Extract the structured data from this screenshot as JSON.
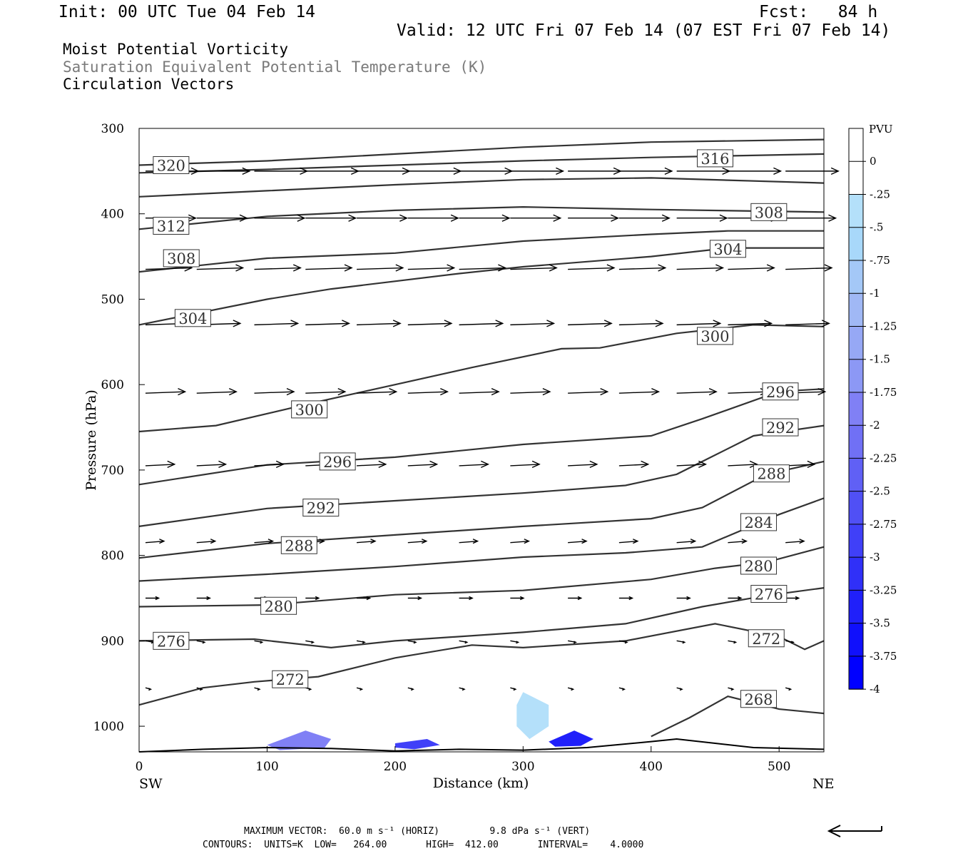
{
  "header": {
    "init": "Init: 00 UTC Tue 04 Feb 14",
    "fcst": "Fcst:   84 h",
    "valid": "Valid: 12 UTC Fri 07 Feb 14 (07 EST Fri 07 Feb 14)"
  },
  "titles": {
    "line1": "Moist Potential Vorticity",
    "line2": "Saturation Equivalent Potential Temperature (K)",
    "line3": "Circulation Vectors"
  },
  "footer": {
    "line1": "MAXIMUM VECTOR:  60.0 m s⁻¹ (HORIZ)         9.8 dPa s⁻¹ (VERT)",
    "line2": "CONTOURS:  UNITS=K  LOW=   264.00       HIGH=  412.00       INTERVAL=    4.0000"
  },
  "colors": {
    "contour": "#333333",
    "shade_light": "#b4e0fa",
    "shade_mid": "#a0b8f5",
    "shade_dark": "#0000ff"
  },
  "chart_data": {
    "type": "cross-section",
    "xlabel": "Distance (km)",
    "ylabel": "Pressure (hPa)",
    "xlim": [
      0,
      535
    ],
    "ylim": [
      1030,
      300
    ],
    "x_ticks": [
      0,
      100,
      200,
      300,
      400,
      500
    ],
    "x_tick_labels": [
      "0",
      "100",
      "200",
      "300",
      "400",
      "500"
    ],
    "y_ticks": [
      300,
      400,
      500,
      600,
      700,
      800,
      900,
      1000
    ],
    "y_tick_labels": [
      "300",
      "400",
      "500",
      "600",
      "700",
      "800",
      "900",
      "1000"
    ],
    "endpoints": {
      "left": "SW",
      "right": "NE"
    },
    "colorbar": {
      "unit": "PVU",
      "labels": [
        "0",
        "-.25",
        "-.5",
        "-.75",
        "-1",
        "-1.25",
        "-1.5",
        "-1.75",
        "-2",
        "-2.25",
        "-2.5",
        "-2.75",
        "-3",
        "-3.25",
        "-3.5",
        "-3.75",
        "-4"
      ],
      "colors": [
        "#ffffff",
        "#ffffff",
        "#b4e0fa",
        "#a8d8fa",
        "#a4c8f7",
        "#a0b8f5",
        "#96a8f5",
        "#8c98f5",
        "#8080f5",
        "#7070f5",
        "#6060f5",
        "#5050f5",
        "#4040f8",
        "#3030f8",
        "#2020fa",
        "#1010fc",
        "#0000ff"
      ]
    },
    "theta_es_contours": [
      {
        "value": "320",
        "label_x": 25,
        "label_p": 343,
        "points": [
          [
            0,
            343
          ],
          [
            100,
            338
          ],
          [
            200,
            330
          ],
          [
            300,
            322
          ],
          [
            400,
            316
          ],
          [
            535,
            313
          ]
        ]
      },
      {
        "value": "316",
        "label_x": 450,
        "label_p": 335,
        "points": [
          [
            0,
            352
          ],
          [
            100,
            348
          ],
          [
            200,
            343
          ],
          [
            300,
            338
          ],
          [
            400,
            334
          ],
          [
            535,
            330
          ]
        ]
      },
      {
        "value": "312",
        "label_x": 25,
        "label_p": 414,
        "points": [
          [
            0,
            380
          ],
          [
            100,
            373
          ],
          [
            200,
            366
          ],
          [
            300,
            360
          ],
          [
            400,
            358
          ],
          [
            535,
            364
          ]
        ]
      },
      {
        "value": "308",
        "label_x": 33,
        "label_p": 452,
        "points": [
          [
            0,
            418
          ],
          [
            100,
            403
          ],
          [
            200,
            396
          ],
          [
            300,
            392
          ],
          [
            400,
            395
          ],
          [
            535,
            398
          ]
        ]
      },
      {
        "value": "308",
        "label_x": 492,
        "label_p": 398,
        "points": []
      },
      {
        "value": "304",
        "label_x": 42,
        "label_p": 522,
        "points": [
          [
            0,
            468
          ],
          [
            100,
            452
          ],
          [
            200,
            446
          ],
          [
            300,
            432
          ],
          [
            400,
            424
          ],
          [
            460,
            420
          ],
          [
            535,
            420
          ]
        ]
      },
      {
        "value": "304",
        "label_x": 460,
        "label_p": 441,
        "points": [
          [
            0,
            530
          ],
          [
            100,
            500
          ],
          [
            150,
            488
          ],
          [
            250,
            470
          ],
          [
            300,
            462
          ],
          [
            400,
            450
          ],
          [
            460,
            440
          ],
          [
            535,
            440
          ]
        ]
      },
      {
        "value": "300",
        "label_x": 133,
        "label_p": 629,
        "points": [
          [
            0,
            655
          ],
          [
            60,
            648
          ],
          [
            140,
            620
          ],
          [
            200,
            600
          ],
          [
            260,
            580
          ],
          [
            330,
            558
          ],
          [
            360,
            557
          ],
          [
            420,
            540
          ],
          [
            480,
            530
          ],
          [
            535,
            532
          ]
        ]
      },
      {
        "value": "300",
        "label_x": 450,
        "label_p": 543,
        "points": []
      },
      {
        "value": "296",
        "label_x": 155,
        "label_p": 690,
        "points": [
          [
            0,
            717
          ],
          [
            100,
            694
          ],
          [
            200,
            685
          ],
          [
            300,
            670
          ],
          [
            400,
            660
          ],
          [
            440,
            640
          ],
          [
            500,
            608
          ],
          [
            535,
            605
          ]
        ]
      },
      {
        "value": "296",
        "label_x": 501,
        "label_p": 608,
        "points": []
      },
      {
        "value": "292",
        "label_x": 142,
        "label_p": 744,
        "points": [
          [
            0,
            766
          ],
          [
            100,
            745
          ],
          [
            200,
            736
          ],
          [
            300,
            727
          ],
          [
            380,
            718
          ],
          [
            420,
            705
          ],
          [
            480,
            660
          ],
          [
            535,
            648
          ]
        ]
      },
      {
        "value": "292",
        "label_x": 501,
        "label_p": 650,
        "points": []
      },
      {
        "value": "288",
        "label_x": 125,
        "label_p": 788,
        "points": [
          [
            0,
            803
          ],
          [
            100,
            786
          ],
          [
            200,
            776
          ],
          [
            300,
            766
          ],
          [
            400,
            757
          ],
          [
            440,
            744
          ],
          [
            490,
            705
          ],
          [
            535,
            690
          ]
        ]
      },
      {
        "value": "288",
        "label_x": 494,
        "label_p": 704,
        "points": []
      },
      {
        "value": "284",
        "label_x": 484,
        "label_p": 761,
        "points": [
          [
            0,
            830
          ],
          [
            100,
            822
          ],
          [
            200,
            813
          ],
          [
            300,
            802
          ],
          [
            380,
            797
          ],
          [
            440,
            790
          ],
          [
            500,
            752
          ],
          [
            535,
            733
          ]
        ]
      },
      {
        "value": "280",
        "label_x": 109,
        "label_p": 859,
        "points": [
          [
            0,
            860
          ],
          [
            100,
            858
          ],
          [
            200,
            846
          ],
          [
            300,
            841
          ],
          [
            400,
            828
          ],
          [
            450,
            815
          ],
          [
            490,
            808
          ],
          [
            535,
            790
          ]
        ]
      },
      {
        "value": "280",
        "label_x": 484,
        "label_p": 812,
        "points": []
      },
      {
        "value": "276",
        "label_x": 25,
        "label_p": 900,
        "points": [
          [
            0,
            900
          ],
          [
            90,
            898
          ],
          [
            150,
            908
          ],
          [
            200,
            900
          ],
          [
            300,
            890
          ],
          [
            380,
            880
          ],
          [
            440,
            860
          ],
          [
            490,
            847
          ],
          [
            535,
            838
          ]
        ]
      },
      {
        "value": "276",
        "label_x": 492,
        "label_p": 845,
        "points": []
      },
      {
        "value": "272",
        "label_x": 118,
        "label_p": 945,
        "points": [
          [
            0,
            975
          ],
          [
            50,
            955
          ],
          [
            90,
            948
          ],
          [
            140,
            942
          ],
          [
            200,
            920
          ],
          [
            260,
            905
          ],
          [
            300,
            908
          ],
          [
            380,
            900
          ],
          [
            450,
            880
          ],
          [
            500,
            895
          ],
          [
            520,
            910
          ],
          [
            535,
            900
          ]
        ]
      },
      {
        "value": "272",
        "label_x": 490,
        "label_p": 897,
        "points": []
      },
      {
        "value": "268",
        "label_x": 484,
        "label_p": 968,
        "points": [
          [
            400,
            1012
          ],
          [
            430,
            990
          ],
          [
            460,
            965
          ],
          [
            500,
            980
          ],
          [
            535,
            985
          ]
        ]
      }
    ],
    "pv_shading": [
      {
        "level": "-0.25",
        "poly": [
          [
            0,
            935
          ],
          [
            20,
            940
          ],
          [
            60,
            960
          ],
          [
            100,
            965
          ],
          [
            130,
            955
          ],
          [
            160,
            960
          ],
          [
            180,
            965
          ],
          [
            150,
            1000
          ],
          [
            120,
            1025
          ],
          [
            90,
            1000
          ],
          [
            60,
            985
          ],
          [
            30,
            995
          ],
          [
            10,
            985
          ],
          [
            0,
            975
          ]
        ]
      },
      {
        "level": "-0.25",
        "poly": [
          [
            190,
            1010
          ],
          [
            210,
            1005
          ],
          [
            230,
            1015
          ],
          [
            220,
            1025
          ],
          [
            190,
            1025
          ],
          [
            180,
            1018
          ]
        ]
      },
      {
        "level": "-0.25",
        "poly": [
          [
            270,
            950
          ],
          [
            290,
            945
          ],
          [
            310,
            960
          ],
          [
            330,
            970
          ],
          [
            340,
            985
          ],
          [
            330,
            1015
          ],
          [
            300,
            1025
          ],
          [
            280,
            1010
          ],
          [
            270,
            985
          ]
        ]
      },
      {
        "level": "-0.25",
        "poly": [
          [
            430,
            970
          ],
          [
            450,
            950
          ],
          [
            470,
            950
          ],
          [
            460,
            980
          ],
          [
            470,
            1000
          ],
          [
            450,
            1015
          ],
          [
            430,
            1010
          ]
        ]
      },
      {
        "level": "-0.5",
        "poly": [
          [
            300,
            960
          ],
          [
            320,
            975
          ],
          [
            320,
            1000
          ],
          [
            305,
            1015
          ],
          [
            295,
            1000
          ],
          [
            295,
            975
          ]
        ]
      },
      {
        "level": "-2",
        "poly": [
          [
            100,
            1022
          ],
          [
            130,
            1005
          ],
          [
            150,
            1015
          ],
          [
            145,
            1025
          ],
          [
            110,
            1028
          ]
        ]
      },
      {
        "level": "-3",
        "poly": [
          [
            200,
            1020
          ],
          [
            225,
            1015
          ],
          [
            235,
            1022
          ],
          [
            215,
            1027
          ],
          [
            200,
            1025
          ]
        ]
      },
      {
        "level": "-3.5",
        "poly": [
          [
            320,
            1018
          ],
          [
            340,
            1005
          ],
          [
            355,
            1015
          ],
          [
            345,
            1023
          ],
          [
            325,
            1024
          ]
        ]
      }
    ],
    "terrain_p": [
      [
        0,
        1030
      ],
      [
        50,
        1027
      ],
      [
        100,
        1025
      ],
      [
        150,
        1026
      ],
      [
        200,
        1029
      ],
      [
        250,
        1027
      ],
      [
        300,
        1028
      ],
      [
        350,
        1025
      ],
      [
        400,
        1018
      ],
      [
        420,
        1015
      ],
      [
        450,
        1020
      ],
      [
        480,
        1025
      ],
      [
        535,
        1027
      ]
    ],
    "vectors": {
      "rows": [
        {
          "p": 350,
          "u": 40,
          "w": 0
        },
        {
          "p": 405,
          "u": 38,
          "w": 0
        },
        {
          "p": 465,
          "u": 35,
          "w": -1
        },
        {
          "p": 530,
          "u": 33,
          "w": -1
        },
        {
          "p": 610,
          "u": 30,
          "w": -1
        },
        {
          "p": 695,
          "u": 22,
          "w": -1
        },
        {
          "p": 785,
          "u": 14,
          "w": -1
        },
        {
          "p": 850,
          "u": 10,
          "w": 0
        },
        {
          "p": 900,
          "u": 6,
          "w": 1
        },
        {
          "p": 955,
          "u": 4,
          "w": 1
        }
      ],
      "x_positions": [
        5,
        45,
        90,
        130,
        170,
        210,
        250,
        290,
        335,
        375,
        420,
        460,
        505
      ]
    }
  }
}
